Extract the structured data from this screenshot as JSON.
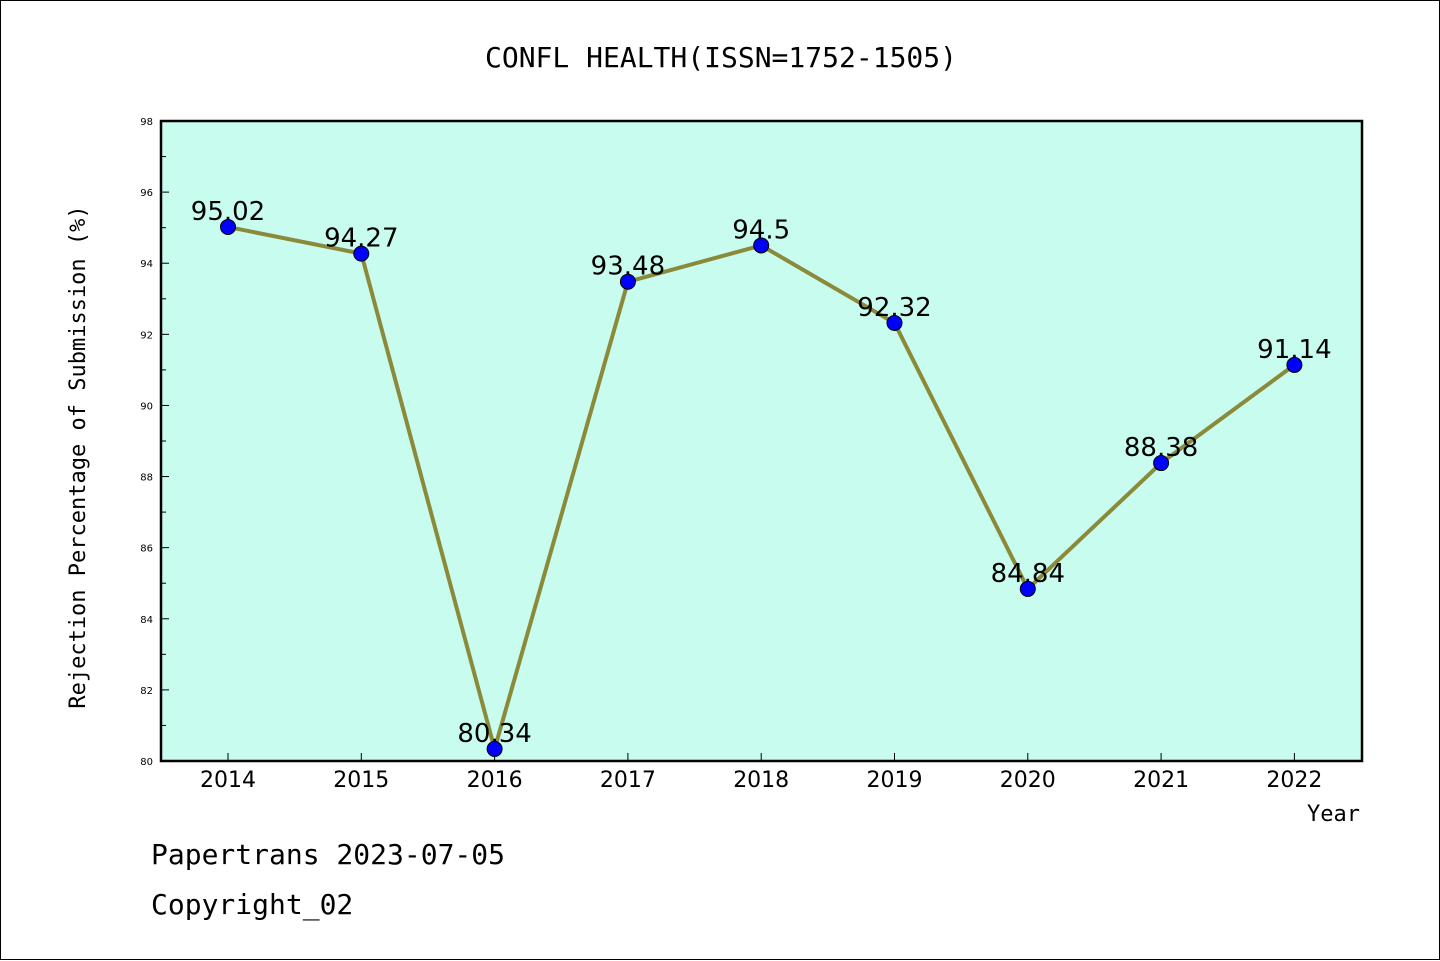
{
  "chart_data": {
    "type": "line",
    "title": "CONFL HEALTH(ISSN=1752-1505)",
    "xlabel": "Year",
    "ylabel": "Rejection Percentage of Submission (%)",
    "categories": [
      "2014",
      "2015",
      "2016",
      "2017",
      "2018",
      "2019",
      "2020",
      "2021",
      "2022"
    ],
    "values": [
      95.02,
      94.27,
      80.34,
      93.48,
      94.5,
      92.32,
      84.84,
      88.38,
      91.14
    ],
    "data_labels": [
      "95.02",
      "94.27",
      "80.34",
      "93.48",
      "94.5",
      "92.32",
      "84.84",
      "88.38",
      "91.14"
    ],
    "ylim": [
      80,
      98
    ],
    "y_ticks": [
      "80",
      "82",
      "84",
      "86",
      "88",
      "90",
      "92",
      "94",
      "96",
      "98"
    ],
    "grid": false,
    "legend": "none",
    "colors": {
      "plot_background": "#c8fcee",
      "line": "#8b8a3a",
      "marker": "#0000ff"
    }
  },
  "footer": {
    "line1": "Papertrans 2023-07-05",
    "line2": "Copyright_02"
  }
}
